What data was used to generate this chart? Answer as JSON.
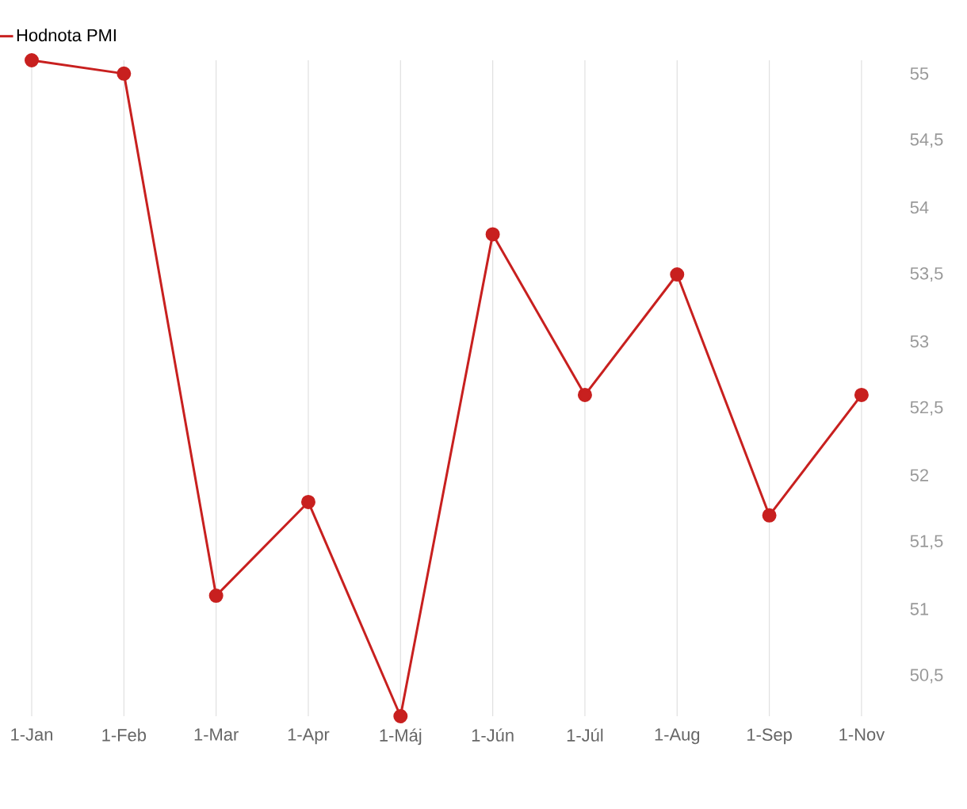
{
  "chart_data": {
    "type": "line",
    "categories": [
      "1-Jan",
      "1-Feb",
      "1-Mar",
      "1-Apr",
      "1-Máj",
      "1-Jún",
      "1-Júl",
      "1-Aug",
      "1-Sep",
      "1-Nov"
    ],
    "series": [
      {
        "name": "Hodnota PMI",
        "color": "#c8201f",
        "values": [
          55.1,
          55.0,
          51.1,
          51.8,
          50.2,
          53.8,
          52.6,
          53.5,
          51.7,
          52.6
        ]
      }
    ],
    "ylim": [
      50.2,
      55.1
    ],
    "yticks": [
      {
        "value": 50.5,
        "label": "50,5"
      },
      51,
      {
        "value": 51.5,
        "label": "51,5"
      },
      52,
      {
        "value": 52.5,
        "label": "52,5"
      },
      53,
      {
        "value": 53.5,
        "label": "53,5"
      },
      54,
      {
        "value": 54.5,
        "label": "54,5"
      },
      55
    ],
    "grid": "x",
    "legend": "top left",
    "marker": "circle",
    "line_style": "solid"
  }
}
